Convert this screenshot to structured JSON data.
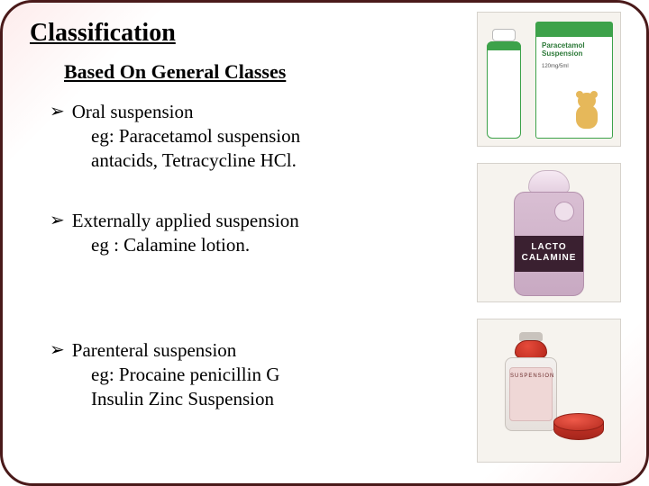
{
  "title": "Classification",
  "subtitle": "Based On General Classes",
  "bullets": [
    {
      "head": "Oral suspension",
      "lines": [
        "eg: Paracetamol suspension",
        "antacids, Tetracycline HCl."
      ]
    },
    {
      "head": "Externally applied suspension",
      "lines": [
        "eg : Calamine lotion."
      ]
    },
    {
      "head": "Parenteral suspension",
      "lines": [
        "eg: Procaine penicillin G",
        "Insulin Zinc Suspension"
      ]
    }
  ],
  "images": {
    "paracetamol": {
      "brand_color": "#3da24a",
      "label_line1": "Paracetamol",
      "label_line2": "Suspension",
      "dose": "120mg/5ml"
    },
    "calamine": {
      "band_line1": "LACTO",
      "band_line2": "CALAMINE",
      "bottle_color": "#c8a9c2",
      "band_color": "#3a2030"
    },
    "parenteral": {
      "vial_label": "SUSPENSION",
      "cap_color": "#b7281c"
    }
  },
  "colors": {
    "border": "#4a1a1a",
    "bg_tint": "#fdecec",
    "text": "#000000"
  }
}
